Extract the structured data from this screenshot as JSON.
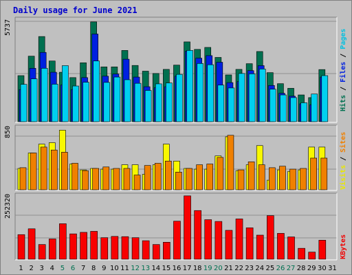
{
  "title": "Daily usage for June 2021",
  "colors": {
    "hits": "#007050",
    "files": "#0020e0",
    "pages": "#00d0f0",
    "visits": "#f8f800",
    "sites": "#f08000",
    "kbytes": "#f80000",
    "weekend_day": "#007050"
  },
  "legend": {
    "top": [
      {
        "text": "Hits",
        "color": "#007050"
      },
      {
        "text": " / ",
        "color": "#000000"
      },
      {
        "text": "Files",
        "color": "#0020e0"
      },
      {
        "text": " / ",
        "color": "#000000"
      },
      {
        "text": "Pages",
        "color": "#00c0e0"
      }
    ],
    "mid": [
      {
        "text": "Visits",
        "color": "#e8e800"
      },
      {
        "text": " / ",
        "color": "#000000"
      },
      {
        "text": "Sites",
        "color": "#f08000"
      }
    ],
    "bot": [
      {
        "text": "KBytes",
        "color": "#f00000"
      }
    ]
  },
  "chart_data": [
    {
      "type": "bar",
      "panel": "top",
      "max_label": "5737",
      "ylim": [
        0,
        5737
      ],
      "categories": [
        "1",
        "2",
        "3",
        "4",
        "5",
        "6",
        "7",
        "8",
        "9",
        "10",
        "11",
        "12",
        "13",
        "14",
        "15",
        "16",
        "17",
        "18",
        "19",
        "20",
        "21",
        "22",
        "23",
        "24",
        "25",
        "26",
        "27",
        "28",
        "29",
        "30",
        "31"
      ],
      "weekend_days": [
        "5",
        "6",
        "12",
        "13",
        "19",
        "20",
        "26",
        "27"
      ],
      "series": [
        {
          "name": "Hits",
          "values": [
            2580,
            3670,
            4770,
            3400,
            2770,
            2470,
            3300,
            5590,
            3070,
            3070,
            3990,
            3150,
            2830,
            2700,
            2930,
            3170,
            4470,
            4050,
            4160,
            3600,
            2620,
            2930,
            3250,
            3930,
            2750,
            2130,
            1870,
            1500,
            1350,
            2920,
            0
          ]
        },
        {
          "name": "Files",
          "values": [
            1800,
            2990,
            3880,
            2770,
            2060,
            1800,
            2470,
            4910,
            2550,
            2670,
            3500,
            2500,
            1960,
            1900,
            1960,
            2550,
            3950,
            3560,
            3700,
            3330,
            2190,
            2250,
            2860,
            3140,
            2030,
            1590,
            1430,
            1000,
            950,
            2500,
            0
          ]
        },
        {
          "name": "Pages",
          "values": [
            2090,
            2400,
            2990,
            2100,
            3140,
            2000,
            2210,
            3400,
            2200,
            2500,
            2350,
            2150,
            1750,
            2120,
            2170,
            2650,
            3990,
            3260,
            3190,
            2050,
            1890,
            2700,
            2680,
            2950,
            1820,
            1500,
            1350,
            1060,
            1550,
            2580,
            0
          ]
        }
      ]
    },
    {
      "type": "bar",
      "panel": "mid",
      "max_label": "850",
      "ylim": [
        0,
        850
      ],
      "categories": [
        "1",
        "2",
        "3",
        "4",
        "5",
        "6",
        "7",
        "8",
        "9",
        "10",
        "11",
        "12",
        "13",
        "14",
        "15",
        "16",
        "17",
        "18",
        "19",
        "20",
        "21",
        "22",
        "23",
        "24",
        "25",
        "26",
        "27",
        "28",
        "29",
        "30",
        "31"
      ],
      "series": [
        {
          "name": "Visits",
          "values": [
            290,
            500,
            620,
            640,
            810,
            350,
            270,
            290,
            280,
            280,
            340,
            340,
            210,
            340,
            620,
            390,
            290,
            280,
            280,
            460,
            720,
            260,
            340,
            600,
            130,
            270,
            250,
            270,
            580,
            580,
            0
          ]
        },
        {
          "name": "Sites",
          "values": [
            300,
            500,
            580,
            540,
            510,
            360,
            260,
            290,
            310,
            290,
            290,
            200,
            330,
            360,
            390,
            240,
            290,
            340,
            350,
            440,
            740,
            270,
            380,
            340,
            300,
            320,
            280,
            290,
            430,
            430,
            0
          ]
        }
      ]
    },
    {
      "type": "bar",
      "panel": "bot",
      "max_label": "252320",
      "ylim": [
        0,
        252320
      ],
      "categories": [
        "1",
        "2",
        "3",
        "4",
        "5",
        "6",
        "7",
        "8",
        "9",
        "10",
        "11",
        "12",
        "13",
        "14",
        "15",
        "16",
        "17",
        "18",
        "19",
        "20",
        "21",
        "22",
        "23",
        "24",
        "25",
        "26",
        "27",
        "28",
        "29",
        "30",
        "31"
      ],
      "series": [
        {
          "name": "KBytes",
          "values": [
            97000,
            120000,
            58000,
            80000,
            140000,
            100000,
            106000,
            110000,
            85000,
            90000,
            89000,
            85000,
            73000,
            58000,
            67000,
            150000,
            250000,
            192000,
            156000,
            149000,
            114000,
            159000,
            124000,
            95000,
            172000,
            102000,
            88000,
            43000,
            28000,
            75000,
            0
          ]
        }
      ]
    }
  ]
}
